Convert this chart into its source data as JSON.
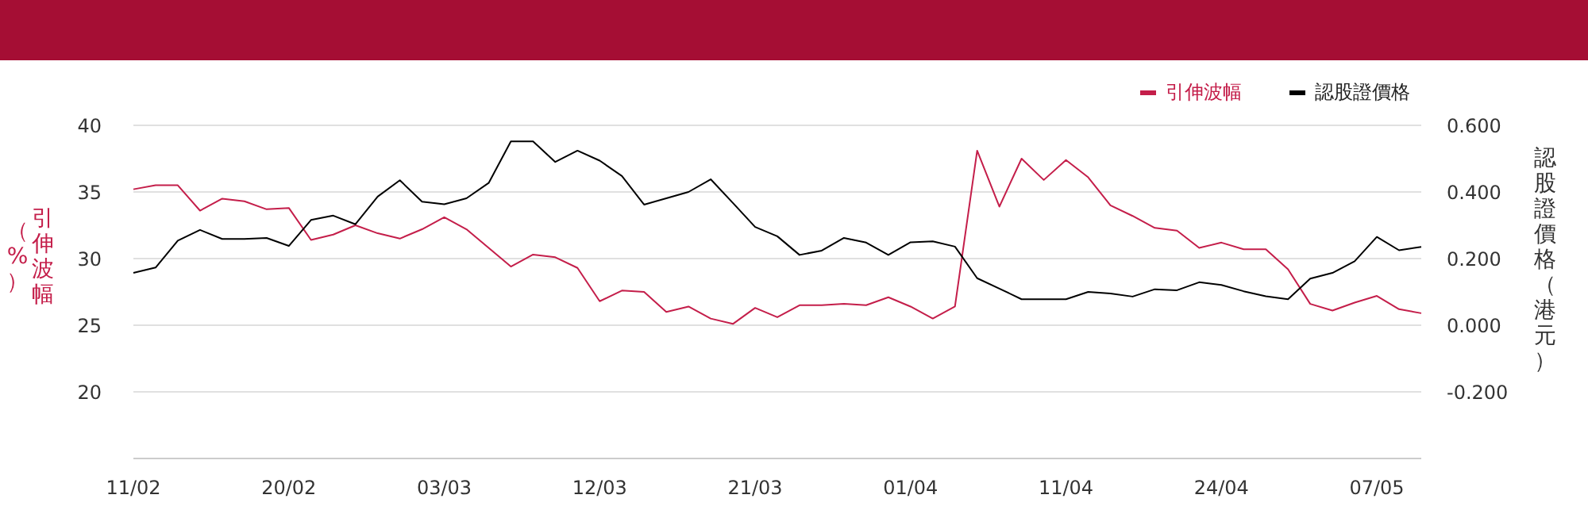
{
  "chart_data": {
    "type": "line",
    "categories": [
      "11/02",
      null,
      null,
      null,
      null,
      null,
      null,
      "20/02",
      null,
      null,
      null,
      null,
      null,
      null,
      "03/03",
      null,
      null,
      null,
      null,
      null,
      null,
      "12/03",
      null,
      null,
      null,
      null,
      null,
      null,
      "21/03",
      null,
      null,
      null,
      null,
      null,
      null,
      "01/04",
      null,
      null,
      null,
      null,
      null,
      null,
      "11/04",
      null,
      null,
      null,
      null,
      null,
      null,
      "24/04",
      null,
      null,
      null,
      null,
      null,
      null,
      "07/05",
      null,
      null
    ],
    "series": [
      {
        "name": "引伸波幅",
        "color": "#c41e4a",
        "values": [
          35.2,
          35.5,
          35.5,
          33.6,
          34.5,
          34.3,
          33.7,
          33.8,
          31.4,
          31.8,
          32.5,
          31.9,
          31.5,
          32.2,
          33.1,
          32.2,
          30.8,
          29.4,
          30.3,
          30.1,
          29.3,
          26.8,
          27.6,
          27.5,
          26.0,
          26.4,
          25.5,
          25.1,
          26.3,
          25.6,
          26.5,
          26.5,
          26.6,
          26.5,
          27.1,
          26.4,
          25.5,
          26.4,
          38.1,
          33.9,
          37.5,
          35.9,
          37.4,
          36.1,
          34.0,
          33.2,
          32.3,
          32.1,
          30.8,
          31.2,
          30.7,
          30.7,
          29.2,
          26.6,
          26.1,
          26.7,
          27.2,
          26.2,
          25.9
        ]
      },
      {
        "name": "認股證價格",
        "color": "#000000",
        "axis": "y2",
        "values": [
          0.157,
          0.173,
          0.254,
          0.286,
          0.259,
          0.259,
          0.262,
          0.238,
          0.316,
          0.329,
          0.303,
          0.386,
          0.435,
          0.371,
          0.363,
          0.381,
          0.427,
          0.552,
          0.552,
          0.49,
          0.524,
          0.494,
          0.448,
          0.362,
          0.381,
          0.4,
          0.438,
          0.367,
          0.295,
          0.267,
          0.211,
          0.224,
          0.262,
          0.248,
          0.211,
          0.249,
          0.252,
          0.236,
          0.141,
          0.11,
          0.078,
          0.078,
          0.078,
          0.1,
          0.095,
          0.086,
          0.108,
          0.105,
          0.129,
          0.121,
          0.102,
          0.087,
          0.078,
          0.14,
          0.157,
          0.192,
          0.265,
          0.225,
          0.235
        ]
      }
    ],
    "ylabel": "引伸波幅（%）",
    "y2label": "認股證價格（港元）",
    "ylim": [
      15,
      40
    ],
    "yticks": [
      {
        "value": 15,
        "label": null
      },
      20,
      25,
      30,
      35,
      40
    ],
    "y2lim": [
      -0.4,
      0.6
    ],
    "y2ticks": [
      {
        "value": -0.4,
        "label": null
      },
      {
        "value": -0.2,
        "label": "-0.200"
      },
      {
        "value": 0,
        "label": "0.000"
      },
      {
        "value": 0.2,
        "label": "0.200"
      },
      {
        "value": 0.4,
        "label": "0.400"
      },
      {
        "value": 0.6,
        "label": "0.600"
      }
    ],
    "grid": "y",
    "legend": "top right",
    "marker": "none",
    "line_style": "solid"
  }
}
